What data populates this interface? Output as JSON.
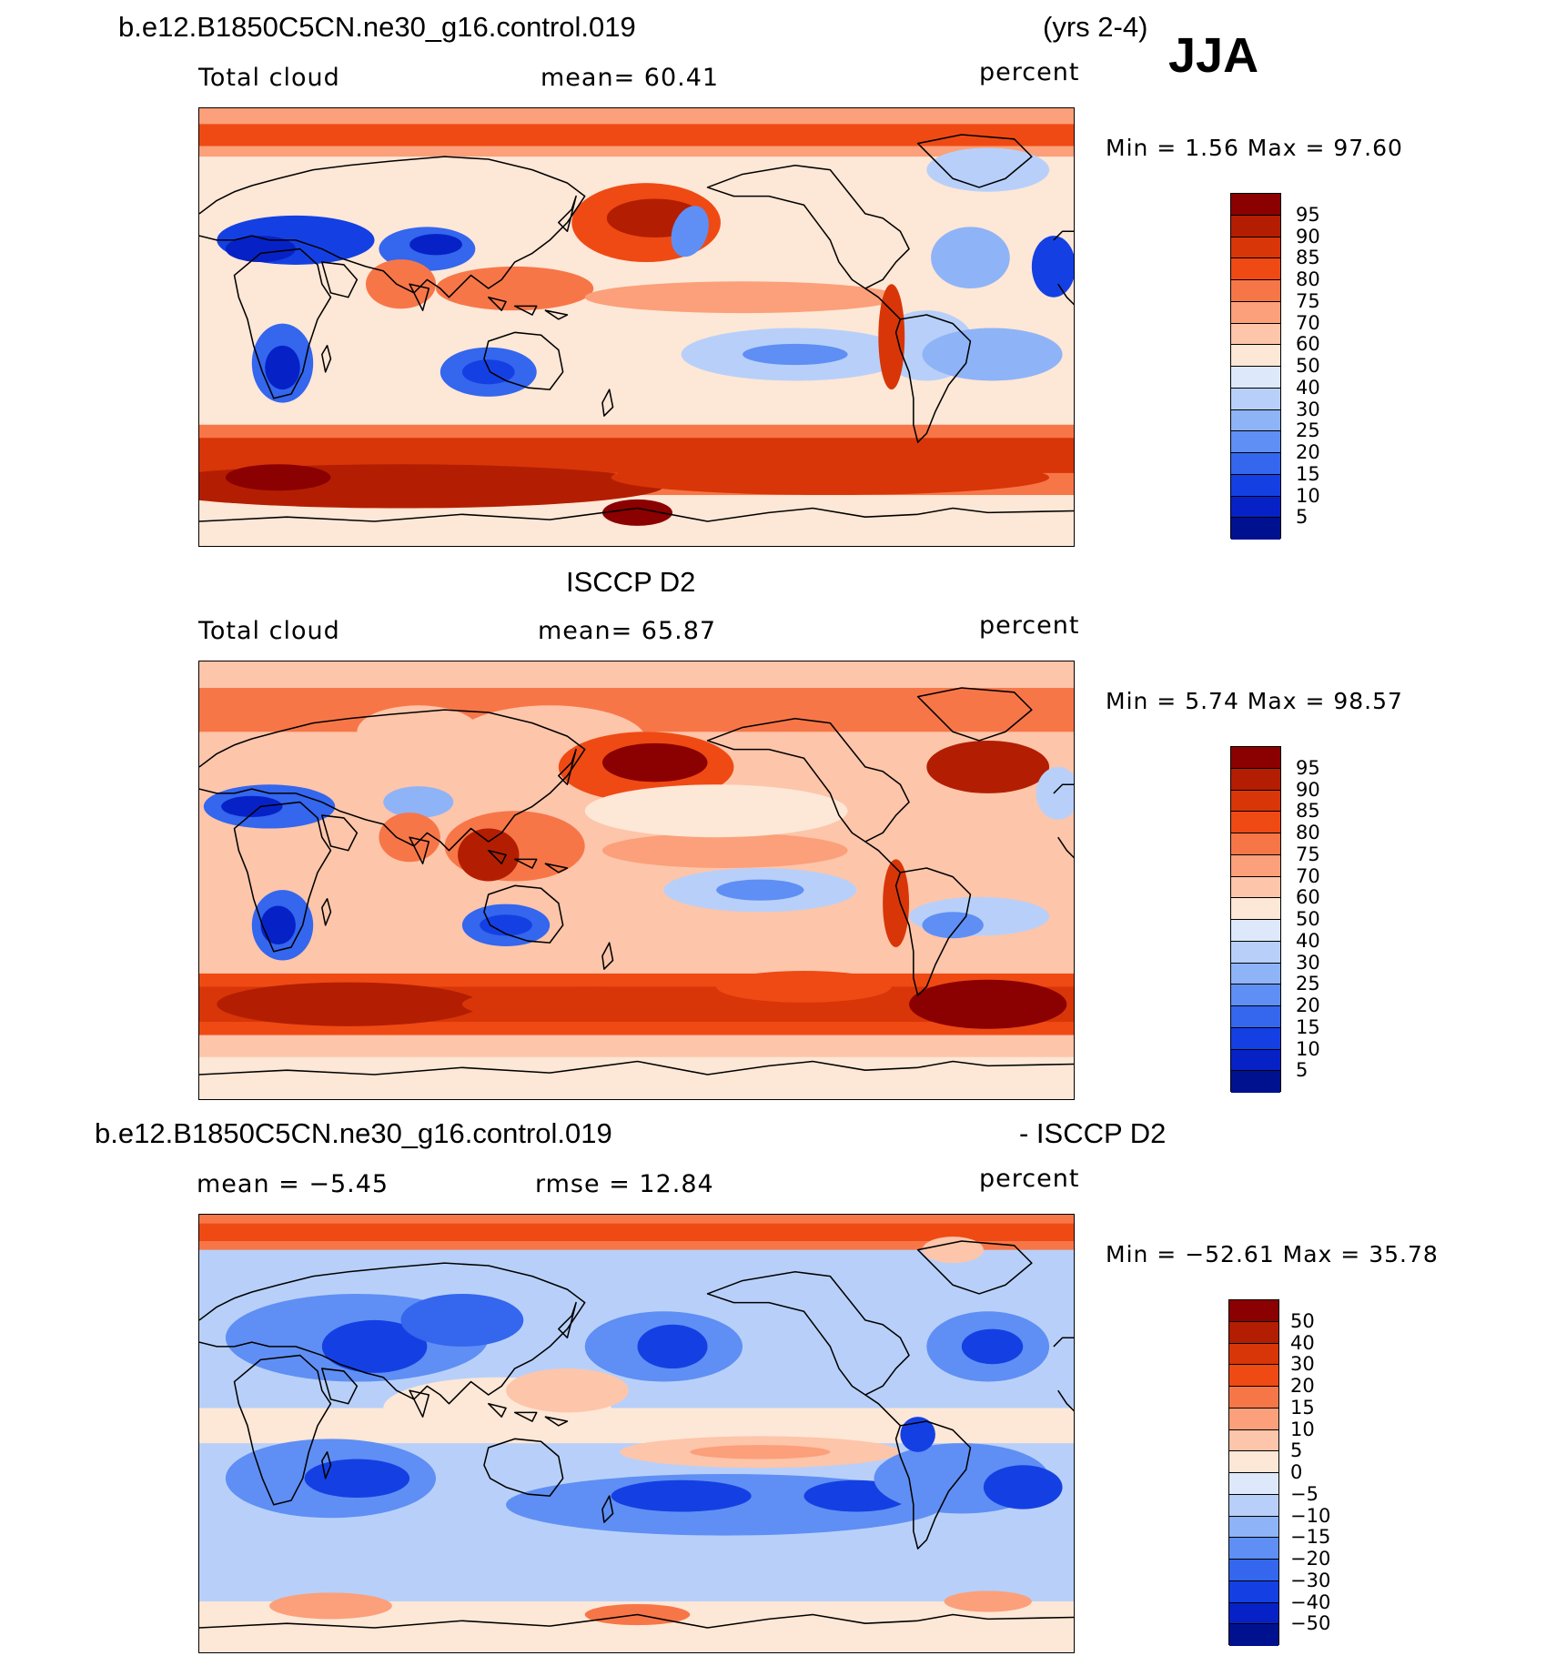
{
  "season": "JJA",
  "panels": [
    {
      "title_left": "b.e12.B1850C5CN.ne30_g16.control.019",
      "title_right": "(yrs 2-4)",
      "field": "Total cloud",
      "stat_text": "mean=   60.41",
      "units": "percent",
      "minmax": "Min =     1.56  Max =    97.60",
      "palette_kind": "abs",
      "map_variant": "model"
    },
    {
      "title_center": "ISCCP D2",
      "field": "Total cloud",
      "stat_text": "mean=   65.87",
      "units": "percent",
      "minmax": "Min =     5.74  Max =    98.57",
      "palette_kind": "abs",
      "map_variant": "obs"
    },
    {
      "title_left": "b.e12.B1850C5CN.ne30_g16.control.019",
      "title_right": "- ISCCP D2",
      "mean_text": "mean =   −5.45",
      "rmse_text": "rmse =   12.84",
      "units": "percent",
      "minmax": "Min = −52.61  Max =    35.78",
      "palette_kind": "diff",
      "map_variant": "diff"
    }
  ],
  "legend_abs": {
    "labels": [
      "95",
      "90",
      "85",
      "80",
      "75",
      "70",
      "60",
      "50",
      "40",
      "30",
      "25",
      "20",
      "15",
      "10",
      "5"
    ],
    "colors": [
      "#8b0000",
      "#b31e02",
      "#d83608",
      "#ef4a14",
      "#f77648",
      "#fba07a",
      "#fdc5aa",
      "#fde7d6",
      "#dde9fb",
      "#b8d0f9",
      "#8fb3f7",
      "#5f8ff4",
      "#3466ee",
      "#1440e3",
      "#0622c7",
      "#00118f"
    ]
  },
  "legend_diff": {
    "labels": [
      "50",
      "40",
      "30",
      "20",
      "15",
      "10",
      "5",
      "0",
      "−5",
      "−10",
      "−15",
      "−20",
      "−30",
      "−40",
      "−50"
    ],
    "colors": [
      "#8b0000",
      "#b31e02",
      "#d83608",
      "#ef4a14",
      "#f77648",
      "#fba07a",
      "#fdc5aa",
      "#fde7d6",
      "#dde9fb",
      "#b8d0f9",
      "#8fb3f7",
      "#5f8ff4",
      "#3466ee",
      "#1440e3",
      "#0622c7",
      "#00118f"
    ]
  }
}
